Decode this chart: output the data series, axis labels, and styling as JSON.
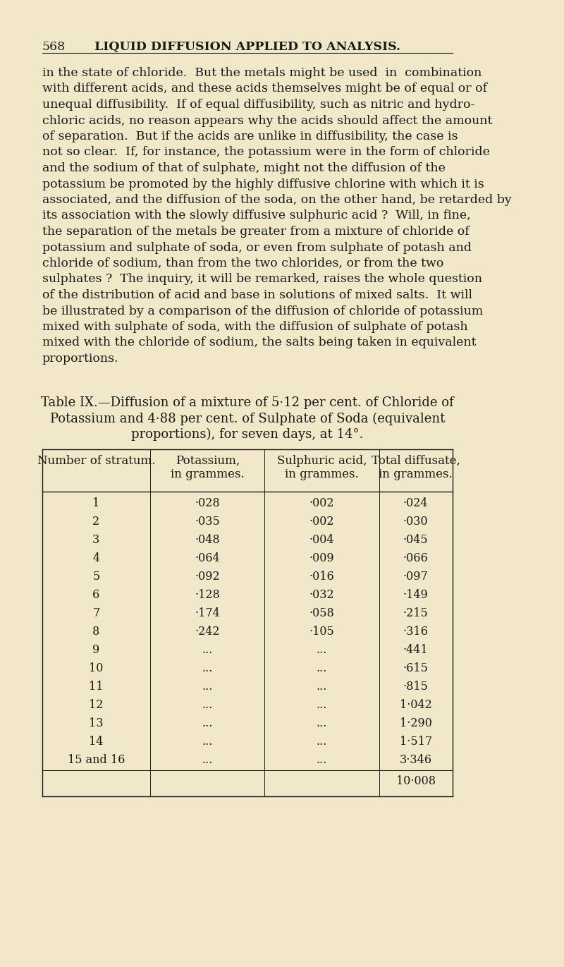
{
  "bg_color": "#f0e8c8",
  "page_number": "568",
  "page_header": "LIQUID DIFFUSION APPLIED TO ANALYSIS.",
  "body_text": [
    "in the state of chloride.  But the metals might be used  in  combination",
    "with different acids, and these acids themselves might be of equal or of",
    "unequal diffusibility.  If of equal diffusibility, such as nitric and hydro-",
    "chloric acids, no reason appears why the acids should affect the amount",
    "of separation.  But if the acids are unlike in diffusibility, the case is",
    "not so clear.  If, for instance, the potassium were in the form of chloride",
    "and the sodium of that of sulphate, might not the diffusion of the",
    "potassium be promoted by the highly diffusive chlorine with which it is",
    "associated, and the diffusion of the soda, on the other hand, be retarded by",
    "its association with the slowly diffusive sulphuric acid ?  Will, in fine,",
    "the separation of the metals be greater from a mixture of chloride of",
    "potassium and sulphate of soda, or even from sulphate of potash and",
    "chloride of sodium, than from the two chlorides, or from the two",
    "sulphates ?  The inquiry, it will be remarked, raises the whole question",
    "of the distribution of acid and base in solutions of mixed salts.  It will",
    "be illustrated by a comparison of the diffusion of chloride of potassium",
    "mixed with sulphate of soda, with the diffusion of sulphate of potash",
    "mixed with the chloride of sodium, the salts being taken in equivalent",
    "proportions."
  ],
  "table_caption_line1": "Table IX.—Diffusion of a mixture of 5·12 per cent. of Chloride of",
  "table_caption_line2": "Potassium and 4·88 per cent. of Sulphate of Soda (equivalent",
  "table_caption_line3": "proportions), for seven days, at 14°.",
  "table_headers": [
    "Number of stratum.",
    "Potassium,\nin grammes.",
    "Sulphuric acid,\nin grammes.",
    "Total diffusate,\nin grammes."
  ],
  "table_rows": [
    [
      "1",
      "·028",
      "·002",
      "·024"
    ],
    [
      "2",
      "·035",
      "·002",
      "·030"
    ],
    [
      "3",
      "·048",
      "·004",
      "·045"
    ],
    [
      "4",
      "·064",
      "·009",
      "·066"
    ],
    [
      "5",
      "·092",
      "·016",
      "·097"
    ],
    [
      "6",
      "·128",
      "·032",
      "·149"
    ],
    [
      "7",
      "·174",
      "·058",
      "·215"
    ],
    [
      "8",
      "·242",
      "·105",
      "·316"
    ],
    [
      "9",
      "...",
      "...",
      "·441"
    ],
    [
      "10",
      "...",
      "...",
      "·615"
    ],
    [
      "11",
      "...",
      "...",
      "·815"
    ],
    [
      "12",
      "...",
      "...",
      "1·042"
    ],
    [
      "13",
      "...",
      "...",
      "1·290"
    ],
    [
      "14",
      "...",
      "...",
      "1·517"
    ],
    [
      "15 and 16",
      "...",
      "...",
      "3·346"
    ]
  ],
  "table_total": "10·008",
  "text_color": "#1a1a1a",
  "header_color": "#1a1a1a",
  "font_size_body": 12.5,
  "font_size_header": 12.0,
  "font_size_table": 11.5,
  "font_size_page_header": 12.5,
  "font_size_caption": 13.0
}
